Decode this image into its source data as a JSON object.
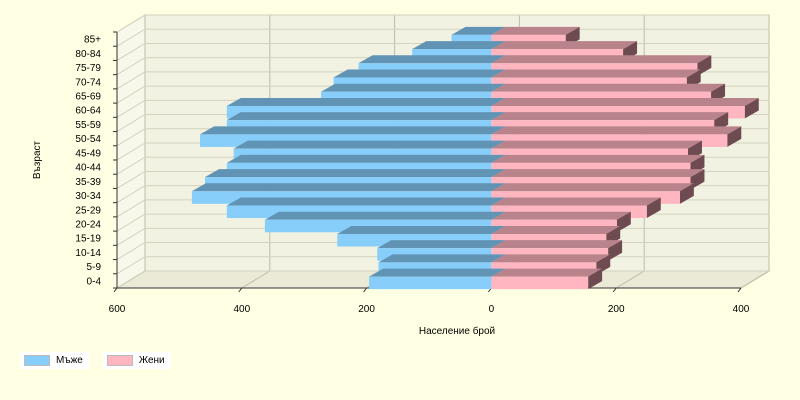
{
  "chart_data": {
    "type": "bar",
    "orientation": "population-pyramid",
    "xlabel": "Население брой",
    "ylabel": "Възраст",
    "categories": [
      "0-4",
      "5-9",
      "10-14",
      "15-19",
      "20-24",
      "25-29",
      "30-34",
      "35-39",
      "40-44",
      "45-49",
      "50-54",
      "55-59",
      "60-64",
      "65-69",
      "70-74",
      "75-79",
      "80-84",
      "85+"
    ],
    "series": [
      {
        "name": "Мъже",
        "color": "#87CEFA",
        "values": [
          196,
          181,
          183,
          247,
          363,
          424,
          480,
          459,
          424,
          413,
          467,
          424,
          424,
          273,
          253,
          213,
          127,
          64
        ]
      },
      {
        "name": "Жени",
        "color": "#FFB6C1",
        "values": [
          155,
          168,
          187,
          184,
          201,
          249,
          302,
          319,
          319,
          315,
          378,
          357,
          406,
          352,
          313,
          330,
          211,
          119
        ]
      }
    ],
    "xlim": [
      -600,
      400
    ],
    "x_ticks": [
      "600",
      "400",
      "200",
      "0",
      "200",
      "400"
    ],
    "x_tick_values": [
      -600,
      -400,
      -200,
      0,
      200,
      400
    ],
    "grid": true,
    "legend_position": "bottom-left"
  }
}
